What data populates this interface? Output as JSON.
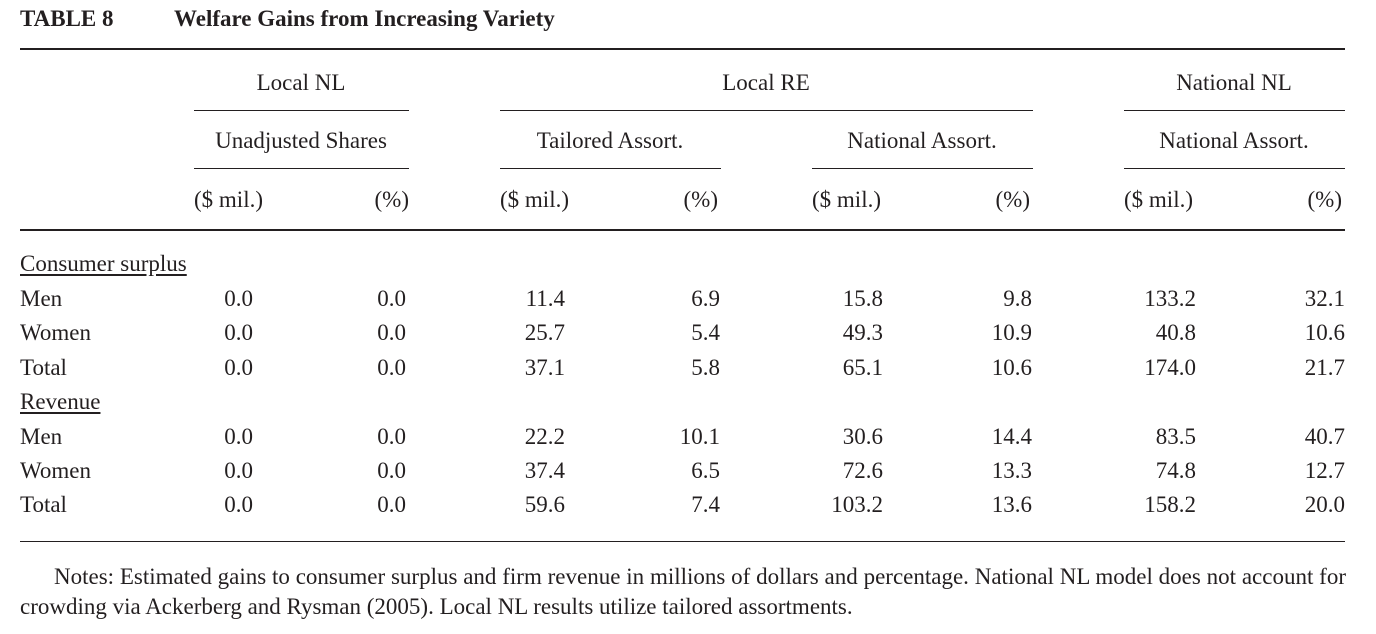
{
  "title": {
    "label": "TABLE 8",
    "text": "Welfare Gains from Increasing Variety"
  },
  "header": {
    "groups": [
      "Local NL",
      "Local RE",
      "National NL"
    ],
    "subgroups": [
      "Unadjusted Shares",
      "Tailored Assort.",
      "National Assort.",
      "National Assort."
    ],
    "units": [
      "($ mil.)",
      "(%)",
      "($ mil.)",
      "(%)",
      "($ mil.)",
      "(%)",
      "($ mil.)",
      "(%)"
    ]
  },
  "sections": [
    {
      "heading": "Consumer surplus",
      "rows": [
        {
          "label": "Men",
          "values": [
            "0.0",
            "0.0",
            "11.4",
            "6.9",
            "15.8",
            "9.8",
            "133.2",
            "32.1"
          ]
        },
        {
          "label": "Women",
          "values": [
            "0.0",
            "0.0",
            "25.7",
            "5.4",
            "49.3",
            "10.9",
            "40.8",
            "10.6"
          ]
        },
        {
          "label": "Total",
          "values": [
            "0.0",
            "0.0",
            "37.1",
            "5.8",
            "65.1",
            "10.6",
            "174.0",
            "21.7"
          ]
        }
      ]
    },
    {
      "heading": "Revenue",
      "rows": [
        {
          "label": "Men",
          "values": [
            "0.0",
            "0.0",
            "22.2",
            "10.1",
            "30.6",
            "14.4",
            "83.5",
            "40.7"
          ]
        },
        {
          "label": "Women",
          "values": [
            "0.0",
            "0.0",
            "37.4",
            "6.5",
            "72.6",
            "13.3",
            "74.8",
            "12.7"
          ]
        },
        {
          "label": "Total",
          "values": [
            "0.0",
            "0.0",
            "59.6",
            "7.4",
            "103.2",
            "13.6",
            "158.2",
            "20.0"
          ]
        }
      ]
    }
  ],
  "notes": "Notes: Estimated gains to consumer surplus and firm revenue in millions of dollars and percentage. National NL model does not account for crowding via Ackerberg and Rysman (2005). Local NL results utilize tailored assortments."
}
